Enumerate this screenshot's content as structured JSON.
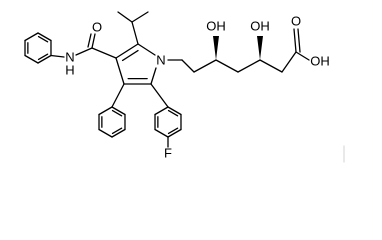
{
  "atoms": [
    {
      "label": "N"
    },
    {
      "label": "H"
    },
    {
      "label": "O"
    },
    {
      "label": "N"
    },
    {
      "label": "OH"
    },
    {
      "label": "OH"
    },
    {
      "label": "O"
    },
    {
      "label": "OH"
    },
    {
      "label": "F"
    }
  ]
}
